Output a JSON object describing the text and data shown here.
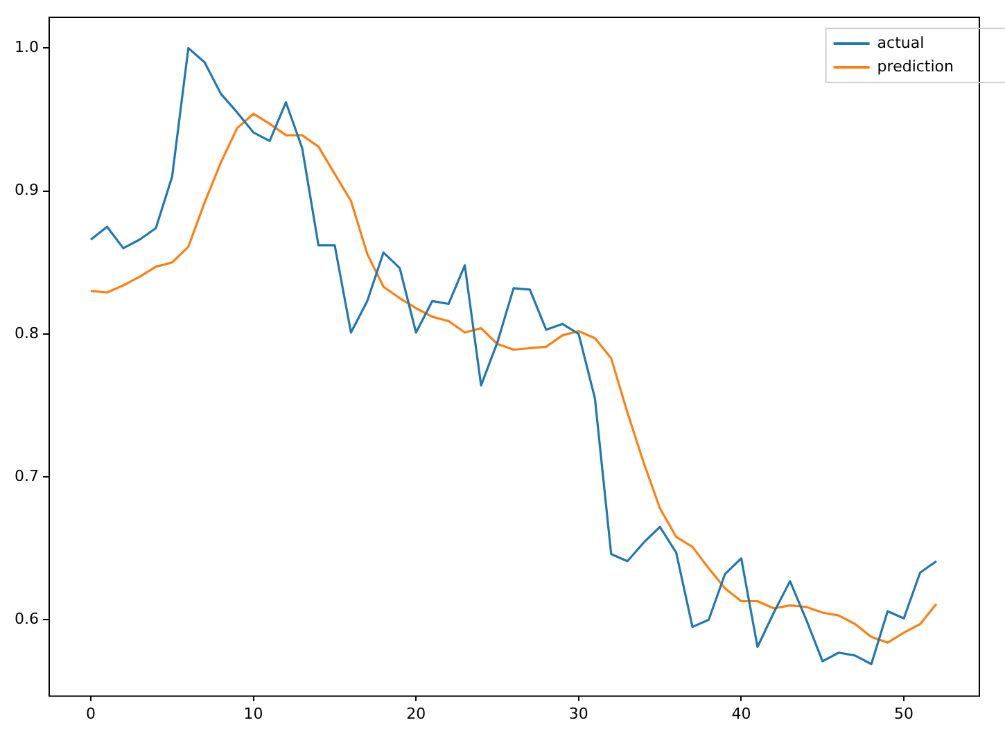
{
  "chart_data": {
    "type": "line",
    "x": [
      0,
      1,
      2,
      3,
      4,
      5,
      6,
      7,
      8,
      9,
      10,
      11,
      12,
      13,
      14,
      15,
      16,
      17,
      18,
      19,
      20,
      21,
      22,
      23,
      24,
      25,
      26,
      27,
      28,
      29,
      30,
      31,
      32,
      33,
      34,
      35,
      36,
      37,
      38,
      39,
      40,
      41,
      42,
      43,
      44,
      45,
      46,
      47,
      48,
      49,
      50,
      51,
      52
    ],
    "series": [
      {
        "name": "actual",
        "color": "#1f77b4",
        "values": [
          0.866,
          0.875,
          0.86,
          0.866,
          0.874,
          0.91,
          1.0,
          0.99,
          0.968,
          0.955,
          0.941,
          0.935,
          0.962,
          0.93,
          0.862,
          0.862,
          0.801,
          0.823,
          0.857,
          0.846,
          0.801,
          0.823,
          0.821,
          0.848,
          0.764,
          0.794,
          0.832,
          0.831,
          0.803,
          0.807,
          0.8,
          0.755,
          0.646,
          0.641,
          0.654,
          0.665,
          0.647,
          0.595,
          0.6,
          0.632,
          0.643,
          0.581,
          0.605,
          0.627,
          0.6,
          0.571,
          0.577,
          0.575,
          0.569,
          0.606,
          0.601,
          0.633,
          0.641
        ]
      },
      {
        "name": "prediction",
        "color": "#ff7f0e",
        "values": [
          0.83,
          0.829,
          0.834,
          0.84,
          0.847,
          0.85,
          0.861,
          0.892,
          0.92,
          0.944,
          0.954,
          0.947,
          0.939,
          0.939,
          0.931,
          0.912,
          0.893,
          0.856,
          0.833,
          0.825,
          0.818,
          0.812,
          0.809,
          0.801,
          0.804,
          0.793,
          0.789,
          0.79,
          0.791,
          0.799,
          0.802,
          0.797,
          0.783,
          0.745,
          0.71,
          0.678,
          0.658,
          0.651,
          0.636,
          0.622,
          0.613,
          0.613,
          0.608,
          0.61,
          0.609,
          0.605,
          0.603,
          0.597,
          0.588,
          0.584,
          0.591,
          0.597,
          0.611
        ]
      }
    ],
    "xlim": [
      -2.6,
      54.6
    ],
    "xticks": [
      0,
      10,
      20,
      30,
      40,
      50
    ],
    "ylim": [
      0.547,
      1.022
    ],
    "yticks": [
      {
        "value": 0.6,
        "label": "0.6"
      },
      {
        "value": 0.7,
        "label": "0.7"
      },
      {
        "value": 0.8,
        "label": "0.8"
      },
      {
        "value": 0.9,
        "label": "0.9"
      },
      {
        "value": 1.0,
        "label": "1.0"
      }
    ],
    "legend": "top right",
    "marker": "none",
    "line_style": "solid"
  }
}
